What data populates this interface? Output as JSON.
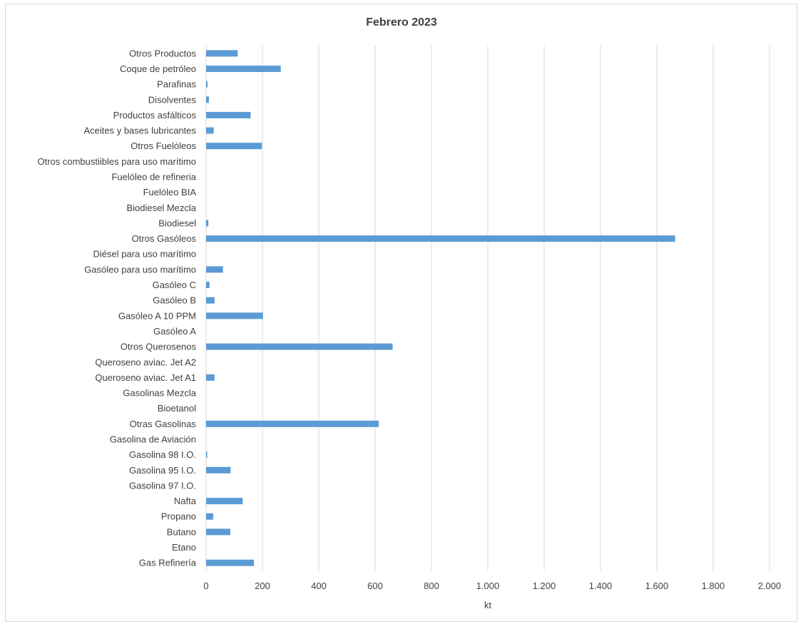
{
  "chart_data": {
    "type": "bar",
    "orientation": "horizontal",
    "title": "Febrero 2023",
    "xlabel": "kt",
    "ylabel": "",
    "xlim": [
      0,
      2000
    ],
    "x_ticks": [
      "0",
      "200",
      "400",
      "600",
      "800",
      "1.000",
      "1.200",
      "1.400",
      "1.600",
      "1.800",
      "2.000"
    ],
    "x_tick_values": [
      0,
      200,
      400,
      600,
      800,
      1000,
      1200,
      1400,
      1600,
      1800,
      2000
    ],
    "grid": true,
    "legend": "none",
    "bar_color": "#5b9bd5",
    "categories": [
      "Otros Productos",
      "Coque de petróleo",
      "Parafinas",
      "Disolventes",
      "Productos asfálticos",
      "Aceites y bases lubricantes",
      "Otros Fuelóleos",
      "Otros combustiibles para uso marítimo",
      "Fuelóleo de refineria",
      "Fuelóleo BIA",
      "Biodiesel Mezcla",
      "Biodiesel",
      "Otros Gasóleos",
      "Diésel para uso marítimo",
      "Gasóleo para uso marítimo",
      "Gasóleo C",
      "Gasóleo B",
      "Gasóleo A 10 PPM",
      "Gasóleo A",
      "Otros Querosenos",
      "Queroseno aviac. Jet A2",
      "Queroseno aviac. Jet A1",
      "Gasolinas Mezcla",
      "Bioetanol",
      "Otras Gasolinas",
      "Gasolina de Aviación",
      "Gasolina 98 I.O.",
      "Gasolina 95 I.O.",
      "Gasolina 97 I.O.",
      "Nafta",
      "Propano",
      "Butano",
      "Etano",
      "Gas Refinería"
    ],
    "values": [
      112,
      265,
      5,
      10,
      158,
      27,
      198,
      0,
      0,
      0,
      0,
      8,
      1665,
      0,
      60,
      12,
      30,
      202,
      0,
      662,
      0,
      30,
      0,
      0,
      613,
      0,
      4,
      87,
      0,
      130,
      25,
      86,
      0,
      170
    ]
  }
}
